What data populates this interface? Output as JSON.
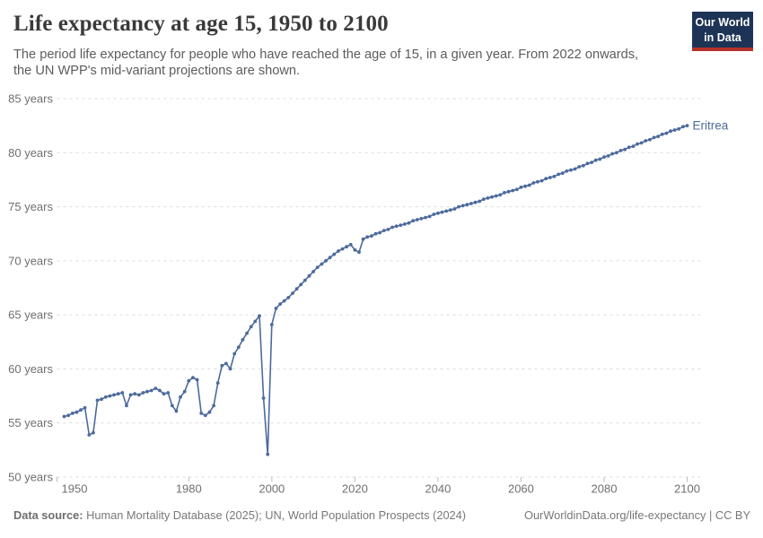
{
  "header": {
    "title": "Life expectancy at age 15, 1950 to 2100",
    "subtitle": "The period life expectancy for people who have reached the age of 15, in a given year. From 2022 onwards, the UN WPP's mid-variant projections are shown.",
    "logo": {
      "line1": "Our World",
      "line2": "in Data"
    }
  },
  "chart_data": {
    "type": "line",
    "title": "Life expectancy at age 15, 1950 to 2100",
    "entity": "Eritrea",
    "x_range": [
      1950,
      2100
    ],
    "y_range": [
      50,
      85
    ],
    "grid": true,
    "x_ticks": [
      1950,
      1980,
      2000,
      2020,
      2040,
      2060,
      2080,
      2100
    ],
    "x_tick_labels": [
      "1950",
      "1980",
      "2000",
      "2020",
      "2040",
      "2060",
      "2080",
      "2100"
    ],
    "y_ticks": [
      50,
      55,
      60,
      65,
      70,
      75,
      80,
      85
    ],
    "y_tick_labels": [
      "50 years",
      "55 years",
      "60 years",
      "65 years",
      "70 years",
      "75 years",
      "80 years",
      "85 years"
    ],
    "projection_start_year": 2022,
    "series": [
      {
        "name": "Eritrea",
        "start_year": 1950,
        "end_year": 2100,
        "values": [
          55.6,
          55.7,
          55.9,
          56.0,
          56.2,
          56.4,
          53.9,
          54.1,
          57.1,
          57.2,
          57.4,
          57.5,
          57.6,
          57.7,
          57.8,
          56.6,
          57.6,
          57.7,
          57.6,
          57.8,
          57.9,
          58.0,
          58.2,
          58.0,
          57.7,
          57.8,
          56.6,
          56.1,
          57.4,
          57.9,
          58.9,
          59.2,
          59.0,
          55.9,
          55.7,
          56.0,
          56.6,
          58.7,
          60.3,
          60.5,
          60.0,
          61.4,
          62.0,
          62.7,
          63.3,
          63.9,
          64.4,
          64.9,
          57.3,
          52.1,
          64.1,
          65.6,
          66.0,
          66.3,
          66.6,
          67.0,
          67.4,
          67.8,
          68.2,
          68.6,
          69.0,
          69.4,
          69.7,
          70.0,
          70.3,
          70.6,
          70.9,
          71.1,
          71.3,
          71.5,
          71.0,
          70.8,
          72.0,
          72.2,
          72.3,
          72.5,
          72.6,
          72.8,
          72.9,
          73.1,
          73.2,
          73.3,
          73.4,
          73.5,
          73.7,
          73.8,
          73.9,
          74.0,
          74.1,
          74.3,
          74.4,
          74.5,
          74.6,
          74.7,
          74.8,
          75.0,
          75.1,
          75.2,
          75.3,
          75.4,
          75.5,
          75.7,
          75.8,
          75.9,
          76.0,
          76.1,
          76.3,
          76.4,
          76.5,
          76.6,
          76.8,
          76.9,
          77.0,
          77.2,
          77.3,
          77.4,
          77.6,
          77.7,
          77.8,
          78.0,
          78.1,
          78.3,
          78.4,
          78.5,
          78.7,
          78.8,
          79.0,
          79.1,
          79.3,
          79.4,
          79.6,
          79.7,
          79.9,
          80.0,
          80.2,
          80.3,
          80.5,
          80.6,
          80.8,
          80.9,
          81.1,
          81.2,
          81.4,
          81.5,
          81.7,
          81.8,
          82.0,
          82.1,
          82.2,
          82.4,
          82.5
        ]
      }
    ],
    "colors": {
      "line": "#4c6a9c",
      "grid": "#dadada",
      "tick": "#bdbdbd",
      "tick_label": "#6f6f6f",
      "entity_label": "#4c6a9c",
      "logo_background": "#1d3456",
      "logo_underline": "#b5322b"
    }
  },
  "footer": {
    "source_label": "Data source:",
    "source_text": " Human Mortality Database (2025); UN, World Population Prospects (2024)",
    "link_text": "OurWorldinData.org/life-expectancy | CC BY"
  }
}
